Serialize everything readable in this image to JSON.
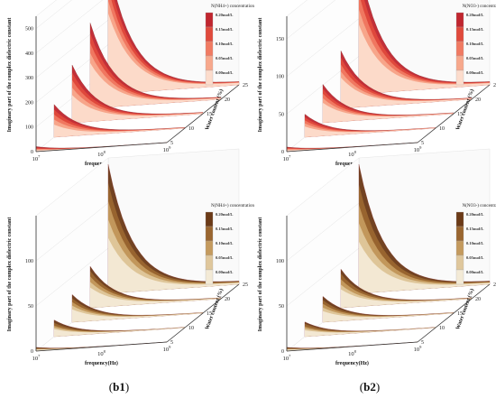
{
  "panels": [
    {
      "id": "a1",
      "caption_id": "a1",
      "palette": "red",
      "legend_title": "N(NH4+) concentration",
      "ylabel": "Imaginary part of the complex dielectric constant",
      "xlabel": "frequency(Hz)",
      "zlabel": "Water content (%)",
      "yticks": [
        "0",
        "100",
        "200",
        "300",
        "400",
        "500"
      ],
      "ymax": 550
    },
    {
      "id": "a2",
      "caption_id": "a2",
      "palette": "red",
      "legend_title": "N(NO3-) concentration",
      "ylabel": "Imaginary part of the complex dielectric constant",
      "xlabel": "frequency(Hz)",
      "zlabel": "Water content (%)",
      "yticks": [
        "0",
        "50",
        "100",
        "150"
      ],
      "ymax": 180
    },
    {
      "id": "b1",
      "caption_id": "b1",
      "palette": "brown",
      "legend_title": "N(NH4+) concentration",
      "ylabel": "Imaginary part of the complex dielectric constant",
      "xlabel": "frequency(Hz)",
      "zlabel": "Water content (%)",
      "yticks": [
        "0",
        "50",
        "100"
      ],
      "ymax": 150
    },
    {
      "id": "b2",
      "caption_id": "b2",
      "palette": "brown",
      "legend_title": "N(NO3-) concentration",
      "ylabel": "Imaginary part of the complex dielectric constant",
      "xlabel": "frequency(Hz)",
      "zlabel": "Water content (%)",
      "yticks": [
        "0",
        "50",
        "100"
      ],
      "ymax": 150
    }
  ],
  "x_ticks": [
    {
      "base": "10",
      "exp": "7"
    },
    {
      "base": "10",
      "exp": "8"
    },
    {
      "base": "10",
      "exp": "9"
    }
  ],
  "z_ticks": [
    "5",
    "10",
    "15",
    "20",
    "25"
  ],
  "legend_items": [
    "0.20mol/L",
    "0.15mol/L",
    "0.10mol/L",
    "0.05mol/L",
    "0.00mol/L"
  ],
  "colors": {
    "red": [
      "#c0262f",
      "#e04a3c",
      "#f07a62",
      "#f7a88c",
      "#fcdccc"
    ],
    "brown": [
      "#6b3a17",
      "#9a6630",
      "#c49a5e",
      "#dfc79c",
      "#f3ead6"
    ],
    "axis": "#333333"
  },
  "chart_data": [
    {
      "id": "a1",
      "type": "area",
      "title": "N(NH4+) concentration",
      "xlabel": "frequency(Hz)",
      "ylabel": "Imaginary part of the complex dielectric constant",
      "zlabel": "Water content (%)",
      "x_scale": "log",
      "x_range": [
        10000000,
        1000000000
      ],
      "ylim": [
        0,
        550
      ],
      "z_values": [
        5,
        10,
        15,
        20,
        25
      ],
      "series_names": [
        "0.20mol/L",
        "0.15mol/L",
        "0.10mol/L",
        "0.05mol/L",
        "0.00mol/L"
      ],
      "peak_at_lowest_frequency": [
        {
          "water_content": 5,
          "values": [
            20,
            15,
            12,
            9,
            6
          ]
        },
        {
          "water_content": 10,
          "values": [
            130,
            110,
            90,
            70,
            50
          ]
        },
        {
          "water_content": 15,
          "values": [
            230,
            200,
            170,
            140,
            110
          ]
        },
        {
          "water_content": 20,
          "values": [
            340,
            300,
            260,
            220,
            180
          ]
        },
        {
          "water_content": 25,
          "values": [
            520,
            470,
            420,
            370,
            320
          ]
        }
      ]
    },
    {
      "id": "a2",
      "type": "area",
      "title": "N(NO3-) concentration",
      "xlabel": "frequency(Hz)",
      "ylabel": "Imaginary part of the complex dielectric constant",
      "zlabel": "Water content (%)",
      "x_scale": "log",
      "x_range": [
        10000000,
        1000000000
      ],
      "ylim": [
        0,
        180
      ],
      "z_values": [
        5,
        10,
        15,
        20,
        25
      ],
      "series_names": [
        "0.20mol/L",
        "0.15mol/L",
        "0.10mol/L",
        "0.05mol/L",
        "0.00mol/L"
      ],
      "peak_at_lowest_frequency": [
        {
          "water_content": 5,
          "values": [
            6,
            5,
            4,
            3,
            2
          ]
        },
        {
          "water_content": 10,
          "values": [
            30,
            26,
            22,
            18,
            14
          ]
        },
        {
          "water_content": 15,
          "values": [
            50,
            44,
            38,
            32,
            26
          ]
        },
        {
          "water_content": 20,
          "values": [
            75,
            66,
            57,
            48,
            40
          ]
        },
        {
          "water_content": 25,
          "values": [
            170,
            150,
            130,
            110,
            90
          ]
        }
      ]
    },
    {
      "id": "b1",
      "type": "area",
      "title": "N(NH4+) concentration",
      "xlabel": "frequency(Hz)",
      "ylabel": "Imaginary part of the complex dielectric constant",
      "zlabel": "Water content (%)",
      "x_scale": "log",
      "x_range": [
        10000000,
        1000000000
      ],
      "ylim": [
        0,
        150
      ],
      "z_values": [
        5,
        10,
        15,
        20,
        25
      ],
      "series_names": [
        "0.20mol/L",
        "0.15mol/L",
        "0.10mol/L",
        "0.05mol/L",
        "0.00mol/L"
      ],
      "peak_at_lowest_frequency": [
        {
          "water_content": 5,
          "values": [
            4,
            3,
            2.5,
            2,
            1.5
          ]
        },
        {
          "water_content": 10,
          "values": [
            18,
            15,
            12,
            10,
            8
          ]
        },
        {
          "water_content": 15,
          "values": [
            30,
            26,
            22,
            18,
            14
          ]
        },
        {
          "water_content": 20,
          "values": [
            45,
            40,
            34,
            28,
            22
          ]
        },
        {
          "water_content": 25,
          "values": [
            140,
            120,
            100,
            80,
            60
          ]
        }
      ]
    },
    {
      "id": "b2",
      "type": "area",
      "title": "N(NO3-) concentration",
      "xlabel": "frequency(Hz)",
      "ylabel": "Imaginary part of the complex dielectric constant",
      "zlabel": "Water content (%)",
      "x_scale": "log",
      "x_range": [
        10000000,
        1000000000
      ],
      "ylim": [
        0,
        150
      ],
      "z_values": [
        5,
        10,
        15,
        20,
        25
      ],
      "series_names": [
        "0.20mol/L",
        "0.15mol/L",
        "0.10mol/L",
        "0.05mol/L",
        "0.00mol/L"
      ],
      "peak_at_lowest_frequency": [
        {
          "water_content": 5,
          "values": [
            4,
            3,
            2.5,
            2,
            1.5
          ]
        },
        {
          "water_content": 10,
          "values": [
            16,
            14,
            11,
            9,
            7
          ]
        },
        {
          "water_content": 15,
          "values": [
            28,
            24,
            20,
            16,
            12
          ]
        },
        {
          "water_content": 20,
          "values": [
            42,
            37,
            31,
            25,
            20
          ]
        },
        {
          "water_content": 25,
          "values": [
            140,
            118,
            96,
            76,
            56
          ]
        }
      ]
    }
  ]
}
